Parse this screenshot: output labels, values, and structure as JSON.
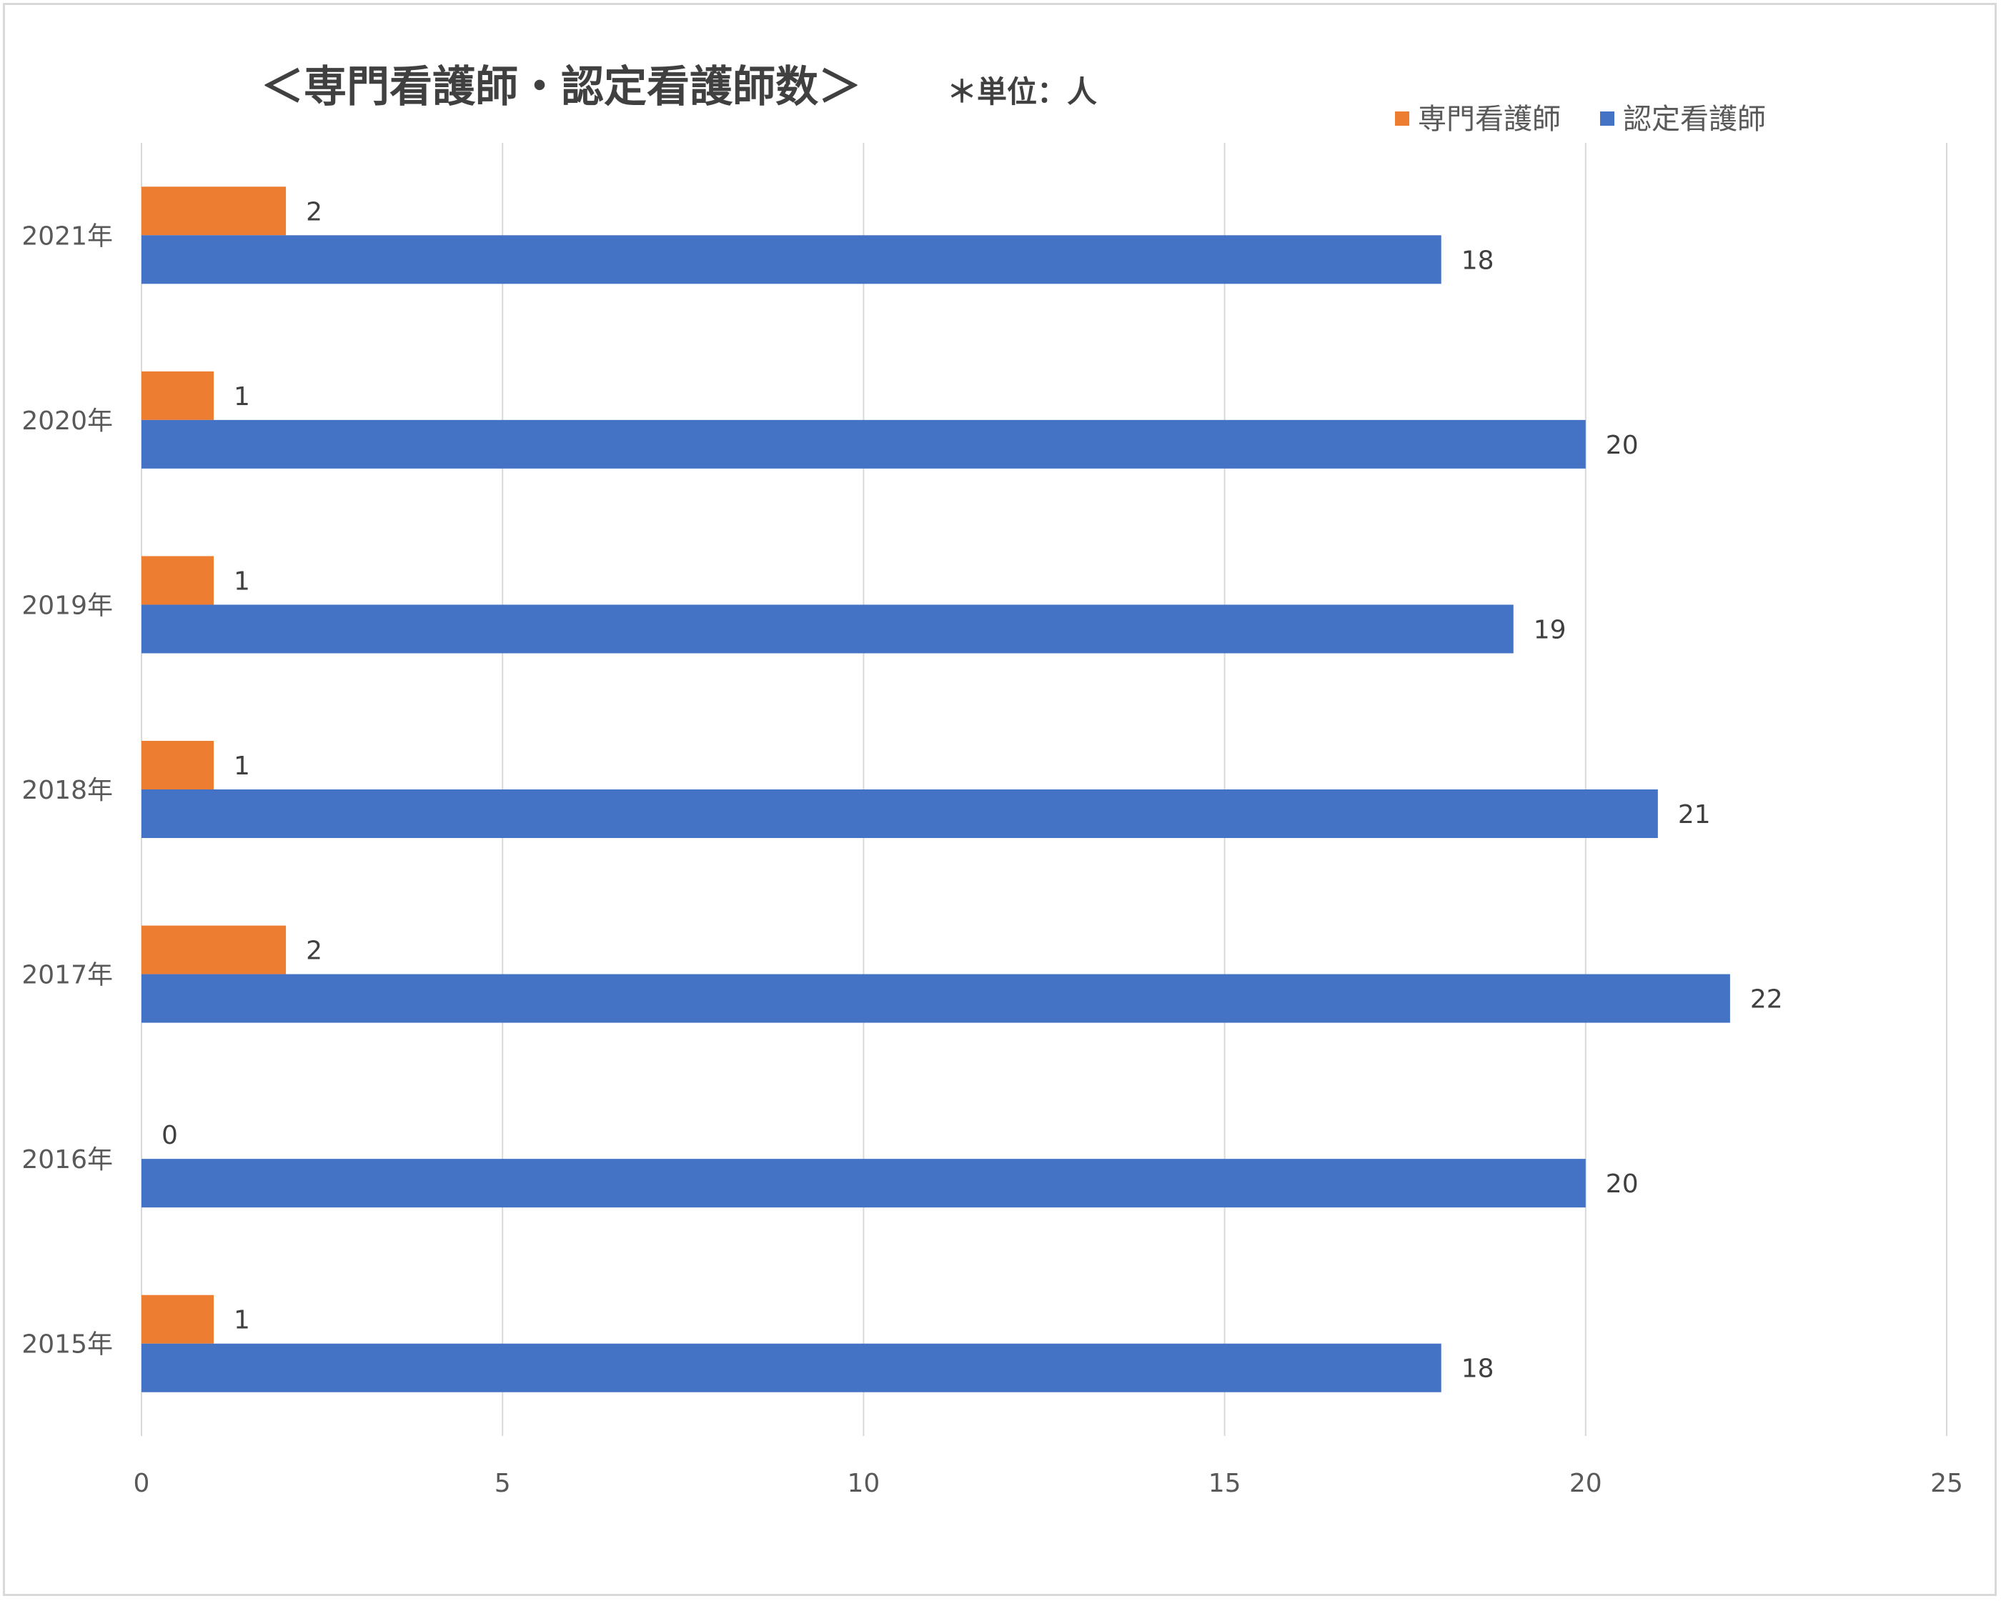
{
  "chart_data": {
    "type": "bar",
    "orientation": "horizontal",
    "title": "＜専門看護師・認定看護師数＞",
    "unit_note": "＊単位：人",
    "categories": [
      "2021年",
      "2020年",
      "2019年",
      "2018年",
      "2017年",
      "2016年",
      "2015年"
    ],
    "series": [
      {
        "name": "専門看護師",
        "color": "#ED7D31",
        "values": [
          2,
          1,
          1,
          1,
          2,
          0,
          1
        ]
      },
      {
        "name": "認定看護師",
        "color": "#4472C4",
        "values": [
          18,
          20,
          19,
          21,
          22,
          20,
          18
        ]
      }
    ],
    "x_ticks": [
      "0",
      "5",
      "10",
      "15",
      "20",
      "25"
    ],
    "xlim": [
      0,
      25
    ],
    "grid": "vertical",
    "legend_position": "top-right",
    "xlabel": "",
    "ylabel": ""
  }
}
